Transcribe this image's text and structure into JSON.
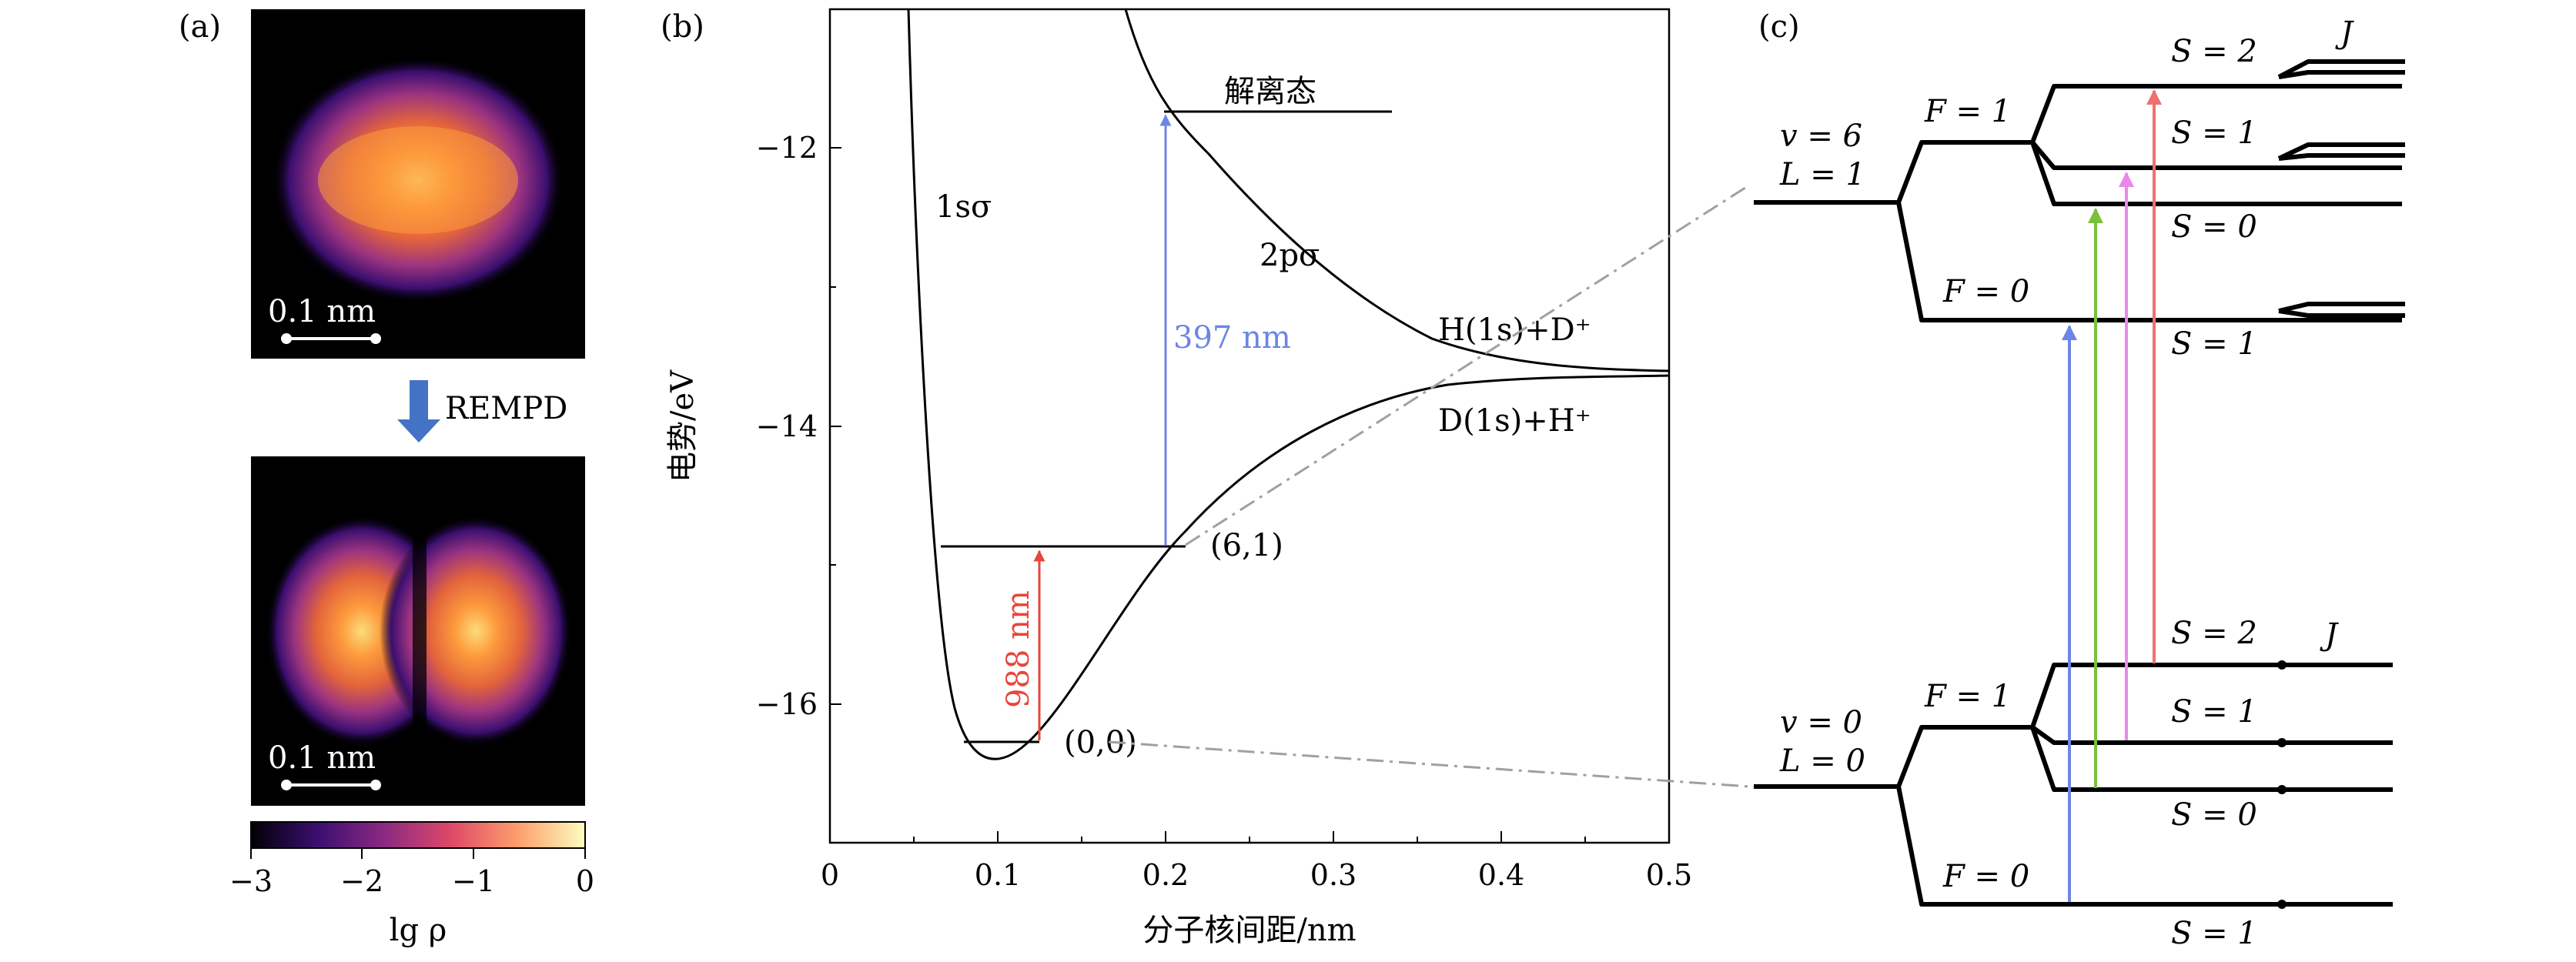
{
  "panel_a": {
    "label": "(a)",
    "scale_top": "0.1 nm",
    "scale_bottom": "0.1 nm",
    "process_label": "REMPD",
    "colorbar_ticks": [
      "−3",
      "−2",
      "−1",
      "0"
    ],
    "colorbar_label": "lg ρ",
    "colorbar_range": [
      -3,
      0
    ],
    "colors": {
      "arrow": "#4472c4",
      "cmap": [
        "#000004",
        "#3b0f70",
        "#8c2981",
        "#de4968",
        "#fe9f6d",
        "#fcfdbf"
      ]
    }
  },
  "panel_b": {
    "label": "(b)",
    "xlabel": "分子核间距/nm",
    "ylabel": "电势/eV",
    "xlim": [
      0,
      0.5
    ],
    "ylim": [
      -17,
      -11
    ],
    "x_ticks": [
      "0",
      "0.1",
      "0.2",
      "0.3",
      "0.4",
      "0.5"
    ],
    "y_ticks": [
      "−12",
      "−14",
      "−16"
    ],
    "curve_1s": "1sσ",
    "curve_2p": "2pσ",
    "dissoc_label": "解离态",
    "asym_upper": "H(1s)+D⁺",
    "asym_lower": "D(1s)+H⁺",
    "level_61": "(6,1)",
    "level_00": "(0,0)",
    "wl_blue": "397 nm",
    "wl_red": "988 nm",
    "colors": {
      "blue": "#6c86e6",
      "red": "#e8463b"
    }
  },
  "panel_c": {
    "label": "(c)",
    "upper": {
      "v": "v = 6",
      "L": "L = 1",
      "F1": "F = 1",
      "F0": "F = 0",
      "S2": "S = 2",
      "S1": "S = 1",
      "S0": "S = 0",
      "S1b": "S = 1",
      "J": "J"
    },
    "lower": {
      "v": "v = 0",
      "L": "L = 0",
      "F1": "F = 1",
      "F0": "F = 0",
      "S2": "S = 2",
      "S1": "S = 1",
      "S0": "S = 0",
      "S1b": "S = 1",
      "J": "J"
    },
    "colors": {
      "blue": "#6c86e6",
      "green": "#7cbf3c",
      "pink": "#ea88ea",
      "red": "#f07070",
      "guide": "#a0a0a0"
    }
  }
}
